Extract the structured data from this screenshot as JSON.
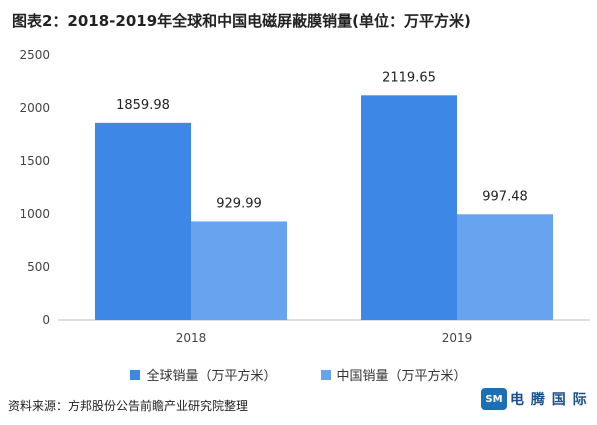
{
  "chart_data": {
    "type": "bar",
    "title": "图表2：2018-2019年全球和中国电磁屏蔽膜销量(单位：万平方米)",
    "categories": [
      "2018",
      "2019"
    ],
    "series": [
      {
        "name": "全球销量（万平方米）",
        "color": "#3d87e6",
        "values": [
          1859.98,
          2119.65
        ],
        "labels": [
          "1859.98",
          "2119.65"
        ]
      },
      {
        "name": "中国销量（万平方米）",
        "color": "#68a3f0",
        "values": [
          929.99,
          997.48
        ],
        "labels": [
          "929.99",
          "997.48"
        ]
      }
    ],
    "ylim": [
      0,
      2500
    ],
    "yticks": [
      0,
      500,
      1000,
      1500,
      2000,
      2500
    ],
    "grid": false,
    "legend_position": "bottom"
  },
  "source": "资料来源：方邦股份公告前瞻产业研究院整理",
  "logo": {
    "mark": "SM",
    "text": "电 腾 国 际"
  }
}
